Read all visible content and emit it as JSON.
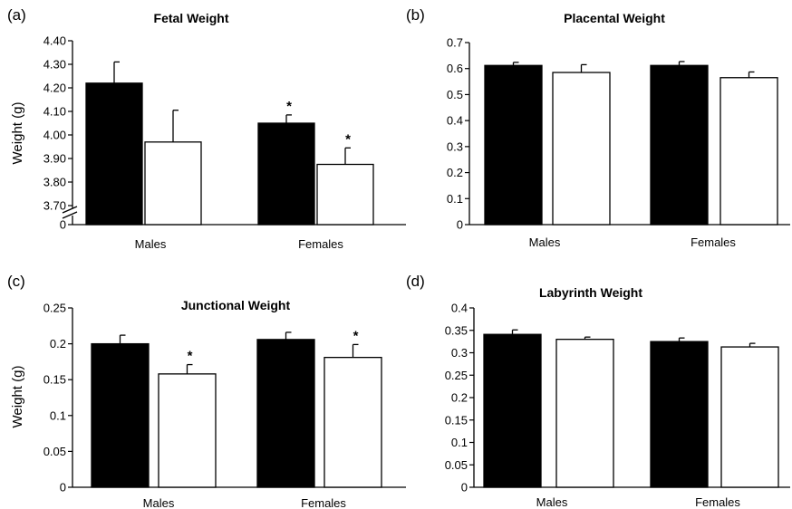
{
  "chart_data": [
    {
      "panel": "(a)",
      "type": "bar",
      "title": "Fetal Weight",
      "ylabel": "Weight (g)",
      "categories": [
        "Males",
        "Females"
      ],
      "series": [
        {
          "values": [
            4.22,
            4.05
          ],
          "errors": [
            0.09,
            0.035
          ],
          "fill": "#000000"
        },
        {
          "values": [
            3.97,
            3.875
          ],
          "errors": [
            0.135,
            0.07
          ],
          "fill": "#ffffff"
        }
      ],
      "significance": [
        [
          false,
          true
        ],
        [
          false,
          true
        ]
      ],
      "significance_marker": "*",
      "ylim": [
        3.65,
        4.4
      ],
      "yticks": [
        "4.40",
        "4.30",
        "4.20",
        "4.10",
        "4.00",
        "3.90",
        "3.80",
        "3.70"
      ],
      "axis_break": true,
      "axis_zero_label": "0"
    },
    {
      "panel": "(b)",
      "type": "bar",
      "title": "Placental Weight",
      "ylabel": "",
      "categories": [
        "Males",
        "Females"
      ],
      "series": [
        {
          "values": [
            0.612,
            0.612
          ],
          "errors": [
            0.012,
            0.015
          ],
          "fill": "#000000"
        },
        {
          "values": [
            0.585,
            0.565
          ],
          "errors": [
            0.03,
            0.022
          ],
          "fill": "#ffffff"
        }
      ],
      "significance": [
        [
          false,
          false
        ],
        [
          false,
          false
        ]
      ],
      "ylim": [
        0,
        0.7
      ],
      "yticks": [
        "0.7",
        "0.6",
        "0.5",
        "0.4",
        "0.3",
        "0.2",
        "0.1",
        "0"
      ]
    },
    {
      "panel": "(c)",
      "type": "bar",
      "title": "Junctional Weight",
      "ylabel": "Weight (g)",
      "categories": [
        "Males",
        "Females"
      ],
      "series": [
        {
          "values": [
            0.2,
            0.206
          ],
          "errors": [
            0.012,
            0.01
          ],
          "fill": "#000000"
        },
        {
          "values": [
            0.158,
            0.181
          ],
          "errors": [
            0.013,
            0.018
          ],
          "fill": "#ffffff"
        }
      ],
      "significance": [
        [
          false,
          false
        ],
        [
          true,
          true
        ]
      ],
      "significance_marker": "*",
      "ylim": [
        0,
        0.25
      ],
      "yticks": [
        "0.25",
        "0.2",
        "0.15",
        "0.1",
        "0.05",
        "0"
      ]
    },
    {
      "panel": "(d)",
      "type": "bar",
      "title": "Labyrinth Weight",
      "ylabel": "",
      "categories": [
        "Males",
        "Females"
      ],
      "series": [
        {
          "values": [
            0.341,
            0.325
          ],
          "errors": [
            0.01,
            0.008
          ],
          "fill": "#000000"
        },
        {
          "values": [
            0.33,
            0.313
          ],
          "errors": [
            0.005,
            0.008
          ],
          "fill": "#ffffff"
        }
      ],
      "significance": [
        [
          false,
          false
        ],
        [
          false,
          false
        ]
      ],
      "ylim": [
        0,
        0.4
      ],
      "yticks": [
        "0.4",
        "0.35",
        "0.3",
        "0.25",
        "0.2",
        "0.15",
        "0.1",
        "0.05",
        "0"
      ]
    }
  ]
}
